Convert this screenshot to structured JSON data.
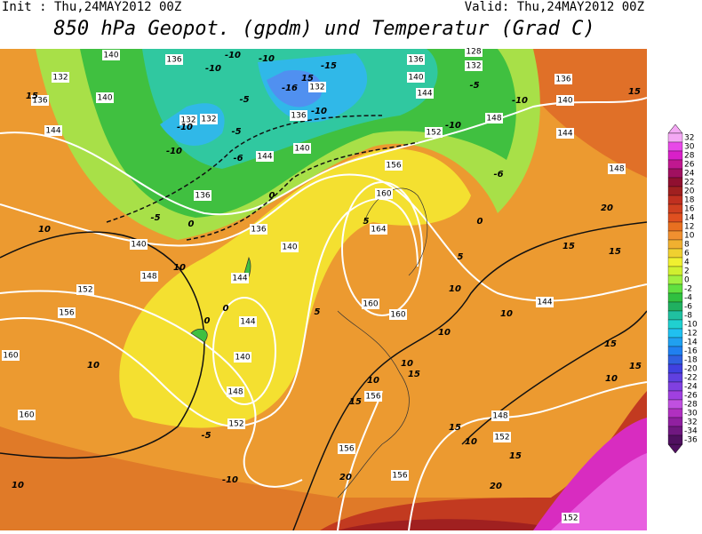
{
  "header": {
    "init": "Init : Thu,24MAY2012 00Z",
    "valid": "Valid: Thu,24MAY2012 00Z",
    "title": "850 hPa Geopot. (gpdm) und Temperatur (Grad C)"
  },
  "colorbar": {
    "levels": [
      32,
      30,
      28,
      26,
      24,
      22,
      20,
      18,
      16,
      14,
      12,
      10,
      8,
      6,
      4,
      2,
      0,
      -2,
      -4,
      -6,
      -8,
      -10,
      -12,
      -14,
      -16,
      -18,
      -20,
      -22,
      -24,
      -26,
      -28,
      -30,
      -32,
      -34,
      -36
    ],
    "colors": [
      "#f4a8f4",
      "#e848e8",
      "#d820c8",
      "#c01890",
      "#a01060",
      "#901030",
      "#a02020",
      "#c03020",
      "#d04020",
      "#e05020",
      "#e87020",
      "#f09030",
      "#f0b030",
      "#f0d030",
      "#f0f030",
      "#d0f030",
      "#a0f040",
      "#60e040",
      "#30c040",
      "#20b060",
      "#20c0a0",
      "#20d0d0",
      "#20c0f0",
      "#20a0f0",
      "#2080f0",
      "#3060e0",
      "#4040e0",
      "#6040e0",
      "#8040e0",
      "#a040e0",
      "#c050e0",
      "#b030c0",
      "#9020a0",
      "#701880",
      "#501060"
    ]
  },
  "map": {
    "geopotential_labels": [
      140,
      136,
      132,
      136,
      140,
      144,
      132,
      132,
      136,
      132,
      140,
      144,
      136,
      136,
      140,
      140,
      144,
      148,
      152,
      156,
      144,
      140,
      148,
      152,
      160,
      160,
      136,
      128,
      132,
      140,
      144,
      148,
      152,
      156,
      160,
      164,
      160,
      160,
      136,
      140,
      144,
      148,
      144,
      148,
      152,
      156,
      156,
      156,
      152
    ],
    "temperature_labels": [
      -10,
      -10,
      -10,
      -15,
      -16,
      15,
      -10,
      -5,
      -5,
      -10,
      -10,
      -6,
      -5,
      0,
      0,
      -5,
      -10,
      -10,
      -6,
      0,
      15,
      10,
      15,
      20,
      15,
      15,
      10,
      10,
      5,
      5,
      10,
      10,
      15,
      10,
      15,
      15,
      10,
      15,
      20,
      20,
      10,
      -10,
      -5,
      10,
      10,
      0,
      0,
      15,
      15,
      10,
      5
    ]
  }
}
